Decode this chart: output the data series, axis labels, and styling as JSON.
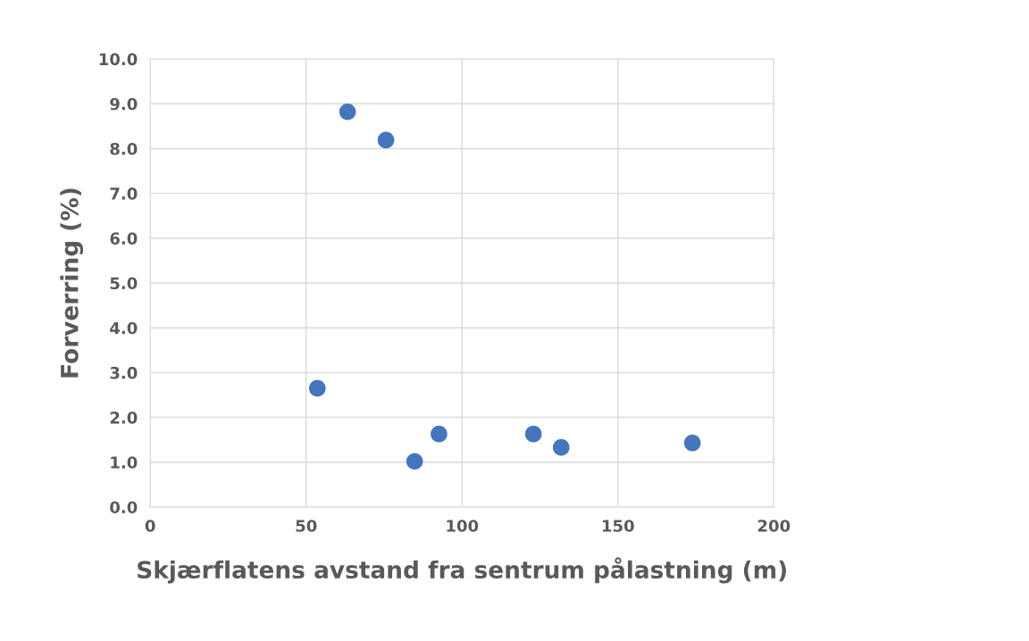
{
  "chart_data": {
    "type": "scatter",
    "xlabel": "Skjærflatens avstand fra sentrum pålastning (m)",
    "ylabel": "Forverring (%)",
    "x": [
      53.6,
      63.3,
      75.6,
      84.8,
      92.6,
      122.9,
      131.8,
      173.9
    ],
    "values": [
      2.65,
      8.82,
      8.19,
      1.02,
      1.63,
      1.63,
      1.33,
      1.43
    ],
    "color": "#4475bd",
    "marker": "circle",
    "xlim": [
      0,
      200
    ],
    "xticks": [
      0,
      50,
      100,
      150,
      200
    ],
    "ylim": [
      0,
      10
    ],
    "yticks": [
      {
        "value": 0,
        "label": "0.0"
      },
      {
        "value": 1,
        "label": "1.0"
      },
      {
        "value": 2,
        "label": "2.0"
      },
      {
        "value": 3,
        "label": "3.0"
      },
      {
        "value": 4,
        "label": "4.0"
      },
      {
        "value": 5,
        "label": "5.0"
      },
      {
        "value": 6,
        "label": "6.0"
      },
      {
        "value": 7,
        "label": "7.0"
      },
      {
        "value": 8,
        "label": "8.0"
      },
      {
        "value": 9,
        "label": "9.0"
      },
      {
        "value": 10,
        "label": "10.0"
      }
    ],
    "grid": true
  }
}
